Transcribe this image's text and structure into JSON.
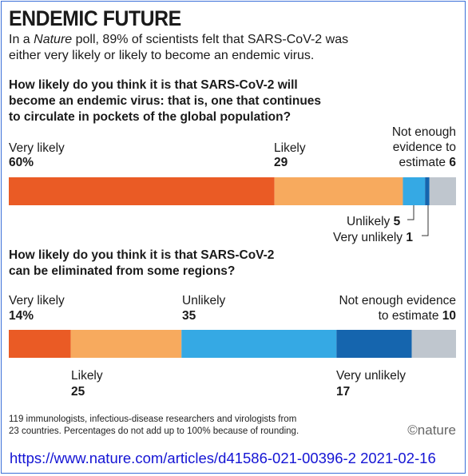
{
  "title": "ENDEMIC FUTURE",
  "subtitle": {
    "pre": "In a ",
    "em": "Nature",
    "post_line1": " poll, 89% of scientists felt that SARS-CoV-2 was",
    "line2": "either very likely or likely to become an endemic virus."
  },
  "charts": [
    {
      "question_lines": [
        "How likely do you think it is that SARS-CoV-2 will",
        "become an endemic virus: that is, one that continues",
        "to circulate in pockets of the global population?"
      ]
    },
    {
      "question_lines": [
        "How likely do you think it is that SARS-CoV-2",
        "can be eliminated from some regions?"
      ]
    }
  ],
  "chart_data": [
    {
      "type": "bar",
      "orientation": "horizontal-stacked",
      "categories": [
        "Very likely",
        "Likely",
        "Unlikely",
        "Very unlikely",
        "Not enough evidence to estimate"
      ],
      "values": [
        60,
        29,
        5,
        1,
        6
      ],
      "value_labels": [
        "60%",
        "29",
        "5",
        "1",
        "6"
      ],
      "colors": [
        "#ea5b25",
        "#f7aa5e",
        "#35a9e4",
        "#1565ae",
        "#bfc6ce"
      ]
    },
    {
      "type": "bar",
      "orientation": "horizontal-stacked",
      "categories": [
        "Very likely",
        "Likely",
        "Unlikely",
        "Very unlikely",
        "Not enough evidence to estimate"
      ],
      "values": [
        14,
        25,
        35,
        17,
        10
      ],
      "value_labels": [
        "14%",
        "25",
        "35",
        "17",
        "10"
      ],
      "colors": [
        "#ea5b25",
        "#f7aa5e",
        "#35a9e4",
        "#1565ae",
        "#bfc6ce"
      ]
    }
  ],
  "labels1": {
    "very_likely": "Very likely",
    "very_likely_val": "60%",
    "likely": "Likely",
    "likely_val": "29",
    "nee_line1": "Not enough",
    "nee_line2": "evidence to",
    "nee_line3": "estimate",
    "nee_val": "6",
    "unlikely": "Unlikely",
    "unlikely_val": "5",
    "very_unlikely": "Very unlikely",
    "very_unlikely_val": "1"
  },
  "labels2": {
    "very_likely": "Very likely",
    "very_likely_val": "14%",
    "unlikely": "Unlikely",
    "unlikely_val": "35",
    "nee_line1": "Not enough evidence",
    "nee_line2": "to estimate",
    "nee_val": "10",
    "likely": "Likely",
    "likely_val": "25",
    "very_unlikely": "Very unlikely",
    "very_unlikely_val": "17"
  },
  "footnote": {
    "line1": "119 immunologists, infectious-disease researchers and virologists from",
    "line2": "23 countries. Percentages do not add up to 100% because of rounding."
  },
  "brand": "©nature",
  "source_url": "https://www.nature.com/articles/d41586-021-00396-2 2021-02-16"
}
